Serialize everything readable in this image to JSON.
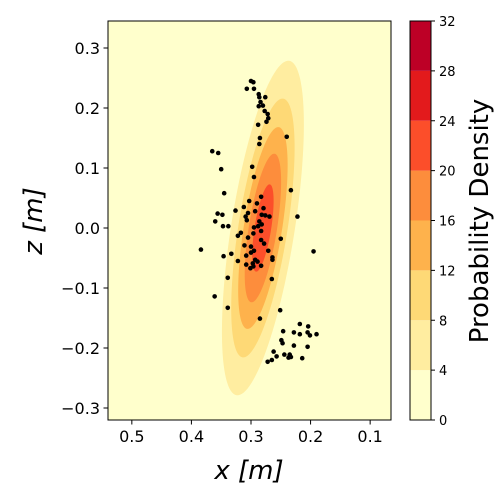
{
  "chart_data": {
    "type": "scatter",
    "xlabel": "x [m]",
    "ylabel": "z [m]",
    "xlim": [
      0.54,
      0.065
    ],
    "ylim": [
      -0.32,
      0.345
    ],
    "x_inverted": true,
    "xticks": [
      0.5,
      0.4,
      0.3,
      0.2,
      0.1
    ],
    "xtick_labels": [
      "0.5",
      "0.4",
      "0.3",
      "0.2",
      "0.1"
    ],
    "yticks": [
      -0.3,
      -0.2,
      -0.1,
      0.0,
      0.1,
      0.2,
      0.3
    ],
    "ytick_labels": [
      "−0.3",
      "−0.2",
      "−0.1",
      "0.0",
      "0.1",
      "0.2",
      "0.3"
    ],
    "grid": false,
    "density": {
      "label": "Probability Density",
      "levels": [
        0,
        4,
        8,
        12,
        16,
        20,
        24,
        28,
        32
      ],
      "level_labels": [
        "0",
        "4",
        "8",
        "12",
        "16",
        "20",
        "24",
        "28",
        "32"
      ],
      "colors": [
        "#ffffcc",
        "#ffeda0",
        "#fed976",
        "#feb24c",
        "#fd8d3c",
        "#fc4e2a",
        "#e31a1c",
        "#bd0026"
      ],
      "center": [
        0.28,
        0.0
      ],
      "sigma_x": 0.037,
      "sigma_z": 0.15,
      "correlation": -0.62,
      "peak": 22.5
    },
    "points": [
      [
        0.3,
        0.245
      ],
      [
        0.296,
        0.243
      ],
      [
        0.307,
        0.232
      ],
      [
        0.295,
        0.232
      ],
      [
        0.287,
        0.223
      ],
      [
        0.286,
        0.218
      ],
      [
        0.276,
        0.218
      ],
      [
        0.284,
        0.21
      ],
      [
        0.28,
        0.204
      ],
      [
        0.287,
        0.203
      ],
      [
        0.277,
        0.195
      ],
      [
        0.272,
        0.19
      ],
      [
        0.271,
        0.183
      ],
      [
        0.274,
        0.177
      ],
      [
        0.288,
        0.172
      ],
      [
        0.24,
        0.152
      ],
      [
        0.285,
        0.15
      ],
      [
        0.286,
        0.14
      ],
      [
        0.365,
        0.128
      ],
      [
        0.355,
        0.125
      ],
      [
        0.298,
        0.102
      ],
      [
        0.35,
        0.098
      ],
      [
        0.295,
        0.085
      ],
      [
        0.233,
        0.063
      ],
      [
        0.345,
        0.058
      ],
      [
        0.283,
        0.052
      ],
      [
        0.303,
        0.045
      ],
      [
        0.29,
        0.041
      ],
      [
        0.312,
        0.035
      ],
      [
        0.279,
        0.033
      ],
      [
        0.326,
        0.029
      ],
      [
        0.293,
        0.028
      ],
      [
        0.305,
        0.025
      ],
      [
        0.309,
        0.019
      ],
      [
        0.282,
        0.022
      ],
      [
        0.276,
        0.021
      ],
      [
        0.356,
        0.024
      ],
      [
        0.348,
        0.022
      ],
      [
        0.269,
        0.019
      ],
      [
        0.222,
        0.019
      ],
      [
        0.307,
        0.013
      ],
      [
        0.286,
        0.011
      ],
      [
        0.282,
        0.006
      ],
      [
        0.36,
        0.011
      ],
      [
        0.288,
        0.003
      ],
      [
        0.338,
        0.003
      ],
      [
        0.347,
        0.003
      ],
      [
        0.295,
        0.001
      ],
      [
        0.283,
        -0.005
      ],
      [
        0.317,
        -0.008
      ],
      [
        0.296,
        -0.009
      ],
      [
        0.322,
        -0.013
      ],
      [
        0.305,
        -0.016
      ],
      [
        0.25,
        -0.018
      ],
      [
        0.283,
        -0.02
      ],
      [
        0.278,
        -0.026
      ],
      [
        0.311,
        -0.029
      ],
      [
        0.3,
        -0.031
      ],
      [
        0.384,
        -0.036
      ],
      [
        0.295,
        -0.038
      ],
      [
        0.271,
        -0.038
      ],
      [
        0.195,
        -0.039
      ],
      [
        0.3,
        -0.041
      ],
      [
        0.333,
        -0.043
      ],
      [
        0.308,
        -0.046
      ],
      [
        0.346,
        -0.047
      ],
      [
        0.264,
        -0.049
      ],
      [
        0.264,
        -0.053
      ],
      [
        0.293,
        -0.053
      ],
      [
        0.322,
        -0.055
      ],
      [
        0.289,
        -0.056
      ],
      [
        0.297,
        -0.059
      ],
      [
        0.308,
        -0.061
      ],
      [
        0.283,
        -0.063
      ],
      [
        0.296,
        -0.064
      ],
      [
        0.301,
        -0.067
      ],
      [
        0.265,
        -0.085
      ],
      [
        0.339,
        -0.083
      ],
      [
        0.361,
        -0.114
      ],
      [
        0.339,
        -0.133
      ],
      [
        0.251,
        -0.137
      ],
      [
        0.285,
        -0.151
      ],
      [
        0.218,
        -0.16
      ],
      [
        0.204,
        -0.164
      ],
      [
        0.246,
        -0.172
      ],
      [
        0.228,
        -0.174
      ],
      [
        0.205,
        -0.174
      ],
      [
        0.218,
        -0.177
      ],
      [
        0.19,
        -0.177
      ],
      [
        0.201,
        -0.179
      ],
      [
        0.249,
        -0.187
      ],
      [
        0.247,
        -0.192
      ],
      [
        0.228,
        -0.196
      ],
      [
        0.205,
        -0.198
      ],
      [
        0.262,
        -0.206
      ],
      [
        0.244,
        -0.211
      ],
      [
        0.235,
        -0.211
      ],
      [
        0.257,
        -0.214
      ],
      [
        0.233,
        -0.215
      ],
      [
        0.237,
        -0.216
      ],
      [
        0.214,
        -0.217
      ],
      [
        0.272,
        -0.223
      ],
      [
        0.265,
        -0.22
      ]
    ],
    "point_color": "#000000"
  }
}
